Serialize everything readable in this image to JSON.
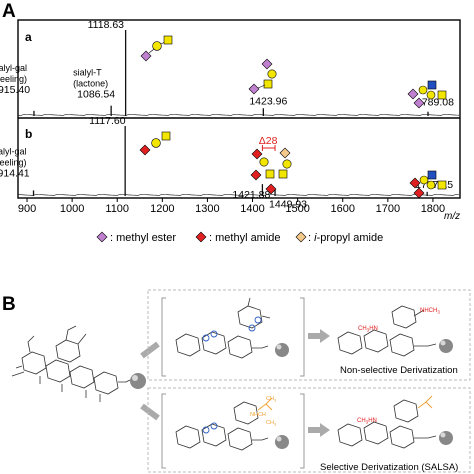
{
  "figure": {
    "panel_a_letter": "A",
    "panel_b_letter": "B"
  },
  "colors": {
    "sialic_methyl_ester": "#c080d0",
    "sialic_methyl_amide": "#e02020",
    "sialic_ipropyl_amide": "#f5c98a",
    "galactose": "#f2e600",
    "glcnac": "#2050c0",
    "spectrum_line": "#111111",
    "delta_label": "#e02020",
    "derivatized_group": "#e02020",
    "aniline_like_group": "#f0a030",
    "reactive_group": "#3060c0"
  },
  "legend": {
    "methyl_ester": ": methyl ester",
    "methyl_amide": ": methyl amide",
    "ipropyl_prefix": ": ",
    "ipropyl_italic": "i",
    "ipropyl_suffix": "-propyl amide"
  },
  "chart_data": [
    {
      "type": "line",
      "panel": "a",
      "xlabel": "m/z",
      "xlim": [
        880,
        1860
      ],
      "x_ticks": [
        900,
        1000,
        1100,
        1200,
        1300,
        1400,
        1500,
        1600,
        1700,
        1800
      ],
      "peaks": [
        {
          "mz": 915.4,
          "intensity": 0.06,
          "label": "915.40",
          "annotation": [
            "sialyl-gal",
            "(peeling)"
          ]
        },
        {
          "mz": 1086.54,
          "intensity": 0.12,
          "label": "1086.54",
          "annotation": [
            "sialyl-T",
            "(lactone)"
          ]
        },
        {
          "mz": 1118.63,
          "intensity": 1.0,
          "label": "1118.63"
        },
        {
          "mz": 1423.96,
          "intensity": 0.09,
          "label": "1423.96"
        },
        {
          "mz": 1789.08,
          "intensity": 0.05,
          "label": "1789.08"
        }
      ]
    },
    {
      "type": "line",
      "panel": "b",
      "xlabel": "m/z",
      "xlim": [
        880,
        1860
      ],
      "x_ticks": [
        900,
        1000,
        1100,
        1200,
        1300,
        1400,
        1500,
        1600,
        1700,
        1800
      ],
      "peaks": [
        {
          "mz": 914.41,
          "intensity": 0.08,
          "label": "914.41",
          "annotation": [
            "sialyl-gal",
            "(peeling)"
          ]
        },
        {
          "mz": 1117.6,
          "intensity": 1.0,
          "label": "1117.60"
        },
        {
          "mz": 1421.88,
          "intensity": 0.17,
          "label": "1421.88"
        },
        {
          "mz": 1449.93,
          "intensity": 0.09,
          "label": "1449.93"
        },
        {
          "mz": 1787.15,
          "intensity": 0.06,
          "label": "1787.15"
        }
      ],
      "annotations": [
        {
          "text": "Δ28",
          "from": 1421.88,
          "to": 1449.93
        }
      ]
    }
  ],
  "panel_a_sub": "a",
  "panel_b_sub": "b",
  "scheme": {
    "captions": {
      "non_selective": "Non-selective Derivatization",
      "selective": "Selective Derivatization (SALSA)"
    },
    "groups": {
      "nhch3": "NHCH",
      "nhch3_sub": "3",
      "ch3hn": "CH",
      "ch3hn_sub": "3",
      "ch3hn_tail": "HN",
      "ch3_top": "CH",
      "ch3_top_sub": "3",
      "nhch": "NHCH",
      "ch3_bottom": "CH",
      "ch3_bottom_sub": "3"
    }
  }
}
